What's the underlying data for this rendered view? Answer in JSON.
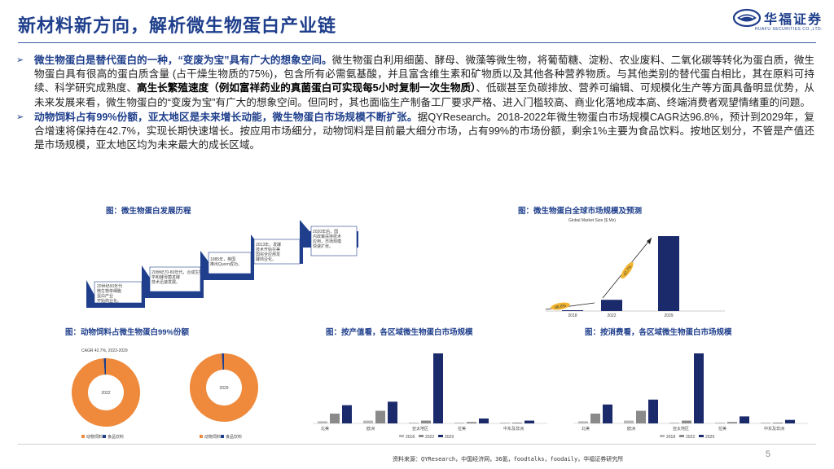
{
  "title": "新材料新方向，解析微生物蛋白产业链",
  "logo": {
    "cn": "华福证券",
    "en": "HUAFU SECURITIES CO.,LTD."
  },
  "bullets": [
    {
      "lead": "微生物蛋白是替代蛋白的一种，“变废为宝”具有广大的想象空间。",
      "body1": "微生物蛋白利用细菌、酵母、微藻等微生物，将葡萄糖、淀粉、农业废料、二氧化碳等转化为蛋白质，微生物蛋白具有很高的蛋白质含量 (占干燥生物质的75%)，包含所有必需氨基酸，并且富含维生素和矿物质以及其他各种营养物质。与其他类别的替代蛋白相比，其在原料可持续、科学研究成熟度、",
      "bold": "高生长繁殖速度（例如富祥药业的真菌蛋白可实现每5小时复制一次生物质）",
      "body2": "、低碳甚至负碳排放、营养可编辑、可规模化生产等方面具备明显优势，从未来发展来看，微生物蛋白的“变废为宝”有广大的想象空间。但同时，其也面临生产制备工厂要求严格、进入门槛较高、商业化落地成本高、终端消费者观望情绪重的问题。"
    },
    {
      "lead": "动物饲料占有99%份额，亚太地区是未来增长动能，微生物蛋白市场规模不断扩张。",
      "body1": "据QYResearch。2018-2022年微生物蛋白市场规模CAGR达96.8%，预计到2029年，复合增速将保持在42.7%，实现长期快速增长。按应用市场细分，动物饲料是目前最大细分市场，占有99%的市场份额，剩余1%主要为食品饮料。按地区划分，不管是产值还是市场规模，亚太地区均为未来最大的成长区域。"
    }
  ],
  "captions": {
    "history": "图：微生物蛋白发展历程",
    "global": "图：微生物蛋白全球市场规模及预测",
    "feed": "图：动物饲料占微生物蛋白99%份额",
    "value": "图：按产值看，各区域微生物蛋白市场规模",
    "consume": "图：按消费看，各区域微生物蛋白市场规模"
  },
  "history_steps": [
    "20世纪60年代 微生物单细胞 蛋白产业 开始商业化。",
    "20世纪70-80年代，合成生物 学和酵母菌发酵 技术迅速发展。",
    "1985年，英国 推出Quorn成功。",
    "2013年，发酵 技术开始在美 国完全应用发 酵商业化。",
    "2020年后，国 内政策扶持技术 应用，市场规模 快速扩张。"
  ],
  "chart_data": [
    {
      "type": "bar",
      "title": "Global Market Size ($ Mn)",
      "categories": [
        "2018",
        "2022",
        "2029"
      ],
      "values": [
        1,
        15,
        100
      ],
      "annotations": [
        "96.8%",
        "42.7%"
      ]
    },
    {
      "type": "pie",
      "title": "CAGR 42.7%, 2023-2029",
      "rings": [
        {
          "label": "2022",
          "slices": [
            99,
            1
          ]
        },
        {
          "label": "2029",
          "slices": [
            99,
            1
          ]
        }
      ],
      "legend": [
        "动物饲料",
        "食品饮料"
      ],
      "colors": [
        "#ef8a3c",
        "#1f3f8c"
      ]
    },
    {
      "type": "bar",
      "categories": [
        "北美",
        "欧洲",
        "亚太地区",
        "拉美",
        "中东及非洲"
      ],
      "series": [
        {
          "name": "2018",
          "values": [
            3,
            4,
            1,
            0.5,
            0.3
          ]
        },
        {
          "name": "2022",
          "values": [
            14,
            18,
            4,
            2,
            1
          ]
        },
        {
          "name": "2029",
          "values": [
            26,
            31,
            100,
            7,
            4
          ]
        }
      ],
      "colors": [
        "#b8b8b8",
        "#8a8a8a",
        "#1b2a6b"
      ]
    },
    {
      "type": "bar",
      "categories": [
        "北美",
        "欧洲",
        "亚太地区",
        "拉美",
        "中东及非洲"
      ],
      "series": [
        {
          "name": "2018",
          "values": [
            3,
            4,
            1,
            0.5,
            0.3
          ]
        },
        {
          "name": "2022",
          "values": [
            14,
            18,
            4,
            2,
            1
          ]
        },
        {
          "name": "2029",
          "values": [
            27,
            34,
            100,
            10,
            5
          ]
        }
      ],
      "colors": [
        "#b8b8b8",
        "#8a8a8a",
        "#1b2a6b"
      ]
    }
  ],
  "footer": "资料来源：QYResearch，中国经济网，36氪，foodtalks，foodaily，华福证券研究所",
  "page": "5"
}
